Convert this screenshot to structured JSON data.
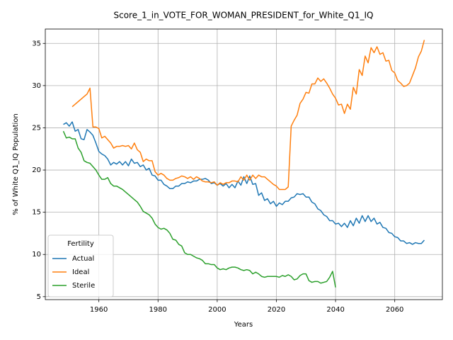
{
  "chart_data": {
    "type": "line",
    "title": "Score_1_in_VOTE_FOR_WOMAN_PRESIDENT_for_White_Q1_IQ",
    "x_label": "Years",
    "y_label": "% of White Q1_IQ Population",
    "x": [
      1948,
      1949,
      1950,
      1951,
      1952,
      1953,
      1954,
      1955,
      1956,
      1957,
      1958,
      1959,
      1960,
      1961,
      1962,
      1963,
      1964,
      1965,
      1966,
      1967,
      1968,
      1969,
      1970,
      1971,
      1972,
      1973,
      1974,
      1975,
      1976,
      1977,
      1978,
      1979,
      1980,
      1981,
      1982,
      1983,
      1984,
      1985,
      1986,
      1987,
      1988,
      1989,
      1990,
      1991,
      1992,
      1993,
      1994,
      1995,
      1996,
      1997,
      1998,
      1999,
      2000,
      2001,
      2002,
      2003,
      2004,
      2005,
      2006,
      2007,
      2008,
      2009,
      2010,
      2011,
      2012,
      2013,
      2014,
      2015,
      2016,
      2017,
      2018,
      2019,
      2020,
      2021,
      2022,
      2023,
      2024,
      2025,
      2026,
      2027,
      2028,
      2029,
      2030,
      2031,
      2032,
      2033,
      2034,
      2035,
      2036,
      2037,
      2038,
      2039,
      2040,
      2041,
      2042,
      2043,
      2044,
      2045,
      2046,
      2047,
      2048,
      2049,
      2050,
      2051,
      2052,
      2053,
      2054,
      2055,
      2056,
      2057,
      2058,
      2059,
      2060,
      2061,
      2062,
      2063,
      2064,
      2065,
      2066,
      2067,
      2068,
      2069,
      2070
    ],
    "series": [
      {
        "name": "Actual",
        "color": "#1f77b4",
        "values": [
          25.4,
          25.6,
          25.2,
          25.7,
          24.6,
          24.8,
          23.7,
          23.6,
          24.8,
          24.5,
          24.1,
          23.2,
          22.2,
          21.9,
          21.7,
          21.3,
          20.6,
          20.9,
          20.7,
          21.0,
          20.6,
          21.0,
          20.5,
          21.3,
          20.8,
          20.9,
          20.4,
          20.6,
          20.0,
          20.2,
          19.4,
          19.3,
          18.8,
          18.8,
          18.3,
          18.1,
          17.8,
          17.8,
          18.1,
          18.1,
          18.4,
          18.4,
          18.6,
          18.5,
          18.7,
          18.7,
          18.9,
          18.9,
          19.0,
          18.8,
          18.4,
          18.5,
          18.2,
          18.4,
          18.1,
          18.4,
          17.9,
          18.3,
          17.9,
          18.7,
          18.2,
          19.2,
          18.4,
          19.3,
          18.3,
          18.4,
          17.0,
          17.3,
          16.4,
          16.6,
          16.0,
          16.3,
          15.7,
          16.1,
          15.9,
          16.3,
          16.3,
          16.7,
          16.8,
          17.2,
          17.1,
          17.2,
          16.8,
          16.8,
          16.2,
          16.0,
          15.4,
          15.2,
          14.7,
          14.5,
          14.0,
          14.0,
          13.6,
          13.7,
          13.3,
          13.7,
          13.2,
          14.0,
          13.4,
          14.3,
          13.7,
          14.6,
          13.9,
          14.6,
          13.9,
          14.3,
          13.6,
          13.8,
          13.2,
          13.1,
          12.6,
          12.5,
          12.1,
          12.0,
          11.6,
          11.6,
          11.3,
          11.4,
          11.2,
          11.4,
          11.3,
          11.3,
          11.7
        ]
      },
      {
        "name": "Ideal",
        "color": "#ff7f0e",
        "values": [
          null,
          null,
          null,
          27.5,
          27.8,
          28.1,
          28.4,
          28.7,
          29.0,
          29.7,
          25.1,
          25.1,
          24.9,
          23.8,
          24.0,
          23.6,
          23.2,
          22.6,
          22.8,
          22.8,
          22.9,
          22.8,
          22.9,
          22.5,
          23.2,
          22.4,
          22.1,
          21.0,
          21.3,
          21.1,
          21.1,
          19.8,
          19.4,
          19.6,
          19.4,
          19.0,
          18.8,
          18.8,
          19.0,
          19.1,
          19.3,
          19.2,
          19.0,
          19.2,
          18.9,
          19.2,
          19.0,
          18.7,
          18.6,
          18.6,
          18.5,
          18.6,
          18.2,
          18.5,
          18.3,
          18.5,
          18.5,
          18.7,
          18.7,
          18.6,
          19.2,
          18.8,
          19.4,
          18.8,
          19.4,
          19.0,
          19.4,
          19.2,
          19.2,
          18.9,
          18.6,
          18.3,
          18.1,
          17.7,
          17.7,
          17.7,
          18.0,
          25.2,
          25.9,
          26.5,
          27.9,
          28.4,
          29.2,
          29.1,
          30.2,
          30.2,
          30.9,
          30.5,
          30.8,
          30.3,
          29.7,
          29.0,
          28.5,
          27.7,
          27.8,
          26.7,
          27.8,
          27.2,
          29.8,
          29.0,
          31.9,
          31.2,
          33.5,
          32.7,
          34.5,
          33.9,
          34.6,
          33.7,
          33.9,
          32.9,
          33.0,
          31.8,
          31.5,
          30.6,
          30.3,
          29.9,
          30.0,
          30.3,
          31.2,
          32.1,
          33.4,
          34.1,
          35.4
        ]
      },
      {
        "name": "Sterile",
        "color": "#2ca02c",
        "values": [
          24.6,
          23.8,
          23.9,
          23.7,
          23.7,
          22.6,
          22.1,
          21.1,
          20.9,
          20.8,
          20.4,
          20.0,
          19.4,
          18.9,
          18.9,
          19.1,
          18.4,
          18.1,
          18.1,
          17.9,
          17.7,
          17.4,
          17.1,
          16.8,
          16.5,
          16.2,
          15.7,
          15.1,
          14.9,
          14.7,
          14.3,
          13.6,
          13.2,
          13.0,
          13.1,
          12.9,
          12.5,
          11.8,
          11.7,
          11.2,
          11.0,
          10.2,
          10.0,
          10.0,
          9.8,
          9.6,
          9.5,
          9.3,
          8.9,
          8.9,
          8.8,
          8.8,
          8.4,
          8.2,
          8.3,
          8.2,
          8.4,
          8.5,
          8.5,
          8.4,
          8.2,
          8.1,
          8.2,
          8.1,
          7.7,
          7.9,
          7.7,
          7.4,
          7.3,
          7.4,
          7.4,
          7.4,
          7.4,
          7.3,
          7.5,
          7.4,
          7.6,
          7.4,
          7.0,
          7.1,
          7.5,
          7.7,
          7.7,
          6.9,
          6.7,
          6.8,
          6.8,
          6.6,
          6.7,
          6.8,
          7.3,
          8.0,
          6.1,
          null,
          null,
          null,
          null,
          null,
          null,
          null,
          null,
          null,
          null,
          null,
          null,
          null,
          null,
          null,
          null,
          null,
          null,
          null,
          null,
          null,
          null,
          null,
          null,
          null,
          null,
          null,
          null,
          null,
          null
        ]
      }
    ],
    "xlim": [
      1941.9,
      2076.1
    ],
    "ylim": [
      4.65,
      36.7
    ],
    "xticks": [
      1960,
      1980,
      2000,
      2020,
      2040,
      2060
    ],
    "yticks": [
      5,
      10,
      15,
      20,
      25,
      30,
      35
    ],
    "grid": true,
    "legend": {
      "title": "Fertility",
      "loc": "lower left"
    }
  }
}
